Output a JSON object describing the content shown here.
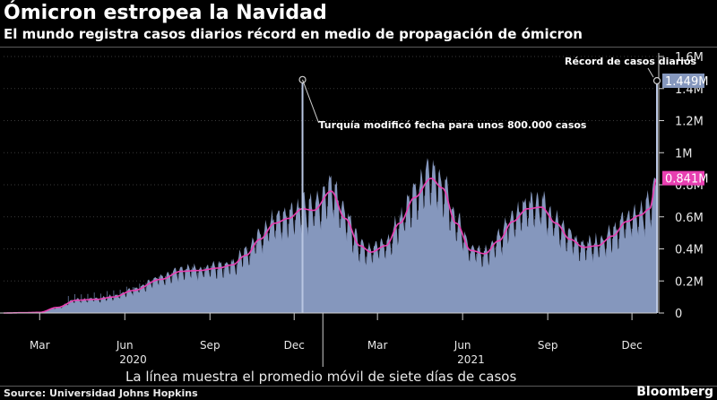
{
  "title": "Ómicron estropea la Navidad",
  "subtitle": "El mundo registra casos diarios récord en medio de propagación de ómicron",
  "footnote": "La línea muestra el promedio móvil de siete días de casos",
  "source": "Source: Universidad Johns Hopkins",
  "brand": "Bloomberg",
  "colors": {
    "bars": "#8597bd",
    "line": "#e83fb1",
    "background": "#000000",
    "spike": "#b9c6e2"
  },
  "chart_data": {
    "type": "bar",
    "series_bar_name": "Casos diarios",
    "series_line_name": "Promedio móvil de siete días",
    "x_range": [
      "2020-01-22",
      "2021-12-28"
    ],
    "ylim": [
      0,
      1600000
    ],
    "y_ticks": [
      0,
      200000,
      400000,
      600000,
      800000,
      1000000,
      1200000,
      1400000,
      1600000
    ],
    "y_tick_labels": [
      "0",
      "0.2M",
      "0.4M",
      "0.6M",
      "0.8M",
      "1M",
      "1.2M",
      "1.4M",
      "1.6M"
    ],
    "x_ticks": [
      {
        "date": "2020-03-01",
        "label": "Mar"
      },
      {
        "date": "2020-06-01",
        "label": "Jun"
      },
      {
        "date": "2020-09-01",
        "label": "Sep"
      },
      {
        "date": "2020-12-01",
        "label": "Dec"
      },
      {
        "date": "2021-03-01",
        "label": "Mar"
      },
      {
        "date": "2021-06-01",
        "label": "Jun"
      },
      {
        "date": "2021-09-01",
        "label": "Sep"
      },
      {
        "date": "2021-12-01",
        "label": "Dec"
      }
    ],
    "year_labels": [
      {
        "date": "2020-06-10",
        "label": "2020"
      },
      {
        "date": "2021-06-10",
        "label": "2021"
      }
    ],
    "moving_average_anchors": [
      [
        "2020-01-22",
        0
      ],
      [
        "2020-02-15",
        2000
      ],
      [
        "2020-03-01",
        4000
      ],
      [
        "2020-03-20",
        35000
      ],
      [
        "2020-04-10",
        80000
      ],
      [
        "2020-05-01",
        85000
      ],
      [
        "2020-05-20",
        100000
      ],
      [
        "2020-06-10",
        140000
      ],
      [
        "2020-07-10",
        210000
      ],
      [
        "2020-08-01",
        260000
      ],
      [
        "2020-08-20",
        265000
      ],
      [
        "2020-09-10",
        280000
      ],
      [
        "2020-09-25",
        300000
      ],
      [
        "2020-10-10",
        360000
      ],
      [
        "2020-10-25",
        460000
      ],
      [
        "2020-11-10",
        560000
      ],
      [
        "2020-11-25",
        590000
      ],
      [
        "2020-12-10",
        650000
      ],
      [
        "2020-12-22",
        640000
      ],
      [
        "2021-01-10",
        760000
      ],
      [
        "2021-01-25",
        590000
      ],
      [
        "2021-02-10",
        420000
      ],
      [
        "2021-02-22",
        380000
      ],
      [
        "2021-03-10",
        420000
      ],
      [
        "2021-03-25",
        560000
      ],
      [
        "2021-04-10",
        720000
      ],
      [
        "2021-04-28",
        840000
      ],
      [
        "2021-05-10",
        780000
      ],
      [
        "2021-05-25",
        560000
      ],
      [
        "2021-06-10",
        390000
      ],
      [
        "2021-06-25",
        370000
      ],
      [
        "2021-07-10",
        450000
      ],
      [
        "2021-07-25",
        570000
      ],
      [
        "2021-08-10",
        650000
      ],
      [
        "2021-08-25",
        660000
      ],
      [
        "2021-09-10",
        560000
      ],
      [
        "2021-09-25",
        460000
      ],
      [
        "2021-10-10",
        410000
      ],
      [
        "2021-10-25",
        420000
      ],
      [
        "2021-11-10",
        480000
      ],
      [
        "2021-11-25",
        570000
      ],
      [
        "2021-12-10",
        610000
      ],
      [
        "2021-12-20",
        650000
      ],
      [
        "2021-12-28",
        841000
      ]
    ],
    "spike_turquia": {
      "date": "2020-12-10",
      "value": 1450000
    },
    "record": {
      "date": "2021-12-28",
      "value": 1449000
    },
    "current_average": {
      "value": 841000
    },
    "annotations": {
      "turquia": "Turquía modificó fecha para unos 800.000 casos",
      "record": "Récord de casos diarios",
      "record_value": "1.449M",
      "average_value": "0.841M"
    }
  }
}
